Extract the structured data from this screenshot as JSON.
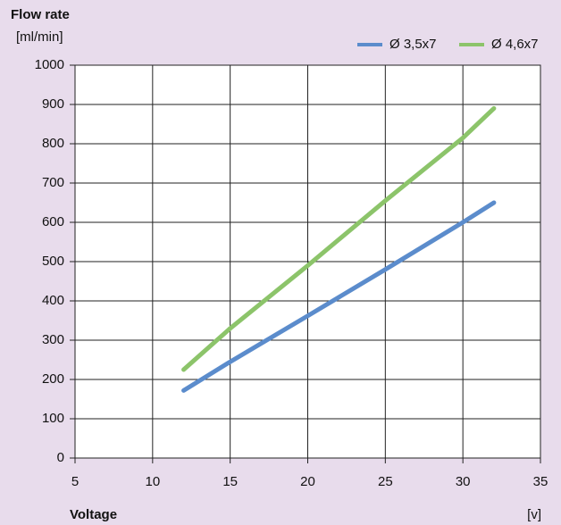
{
  "chart_data": {
    "type": "line",
    "title": "Flow rate",
    "y_label": "[ml/min]",
    "x_label": "Voltage",
    "x_unit": "[v]",
    "x": [
      12,
      15,
      20,
      25,
      30,
      32
    ],
    "series": [
      {
        "name": "Ø 3,5x7",
        "color": "#5b8ccc",
        "values": [
          172,
          245,
          362,
          480,
          600,
          650
        ]
      },
      {
        "name": "Ø 4,6x7",
        "color": "#8cc46a",
        "values": [
          225,
          330,
          490,
          655,
          815,
          890
        ]
      }
    ],
    "xlim": [
      5,
      35
    ],
    "xticks": [
      5,
      10,
      15,
      20,
      25,
      30,
      35
    ],
    "ylim": [
      0,
      1000
    ],
    "yticks": [
      0,
      100,
      200,
      300,
      400,
      500,
      600,
      700,
      800,
      900,
      1000
    ],
    "grid": true,
    "legend": "top-right"
  }
}
